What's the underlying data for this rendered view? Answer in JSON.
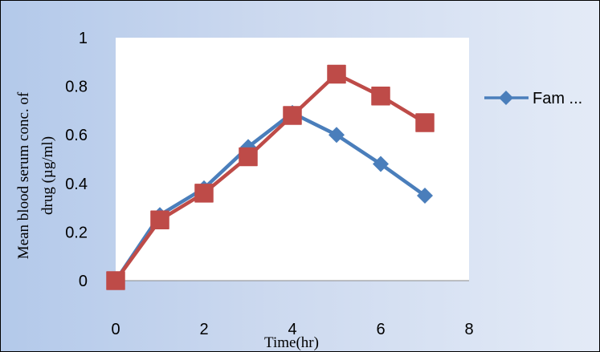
{
  "chart_data": {
    "type": "line",
    "title": "",
    "xlabel": "Time(hr)",
    "ylabel": "Mean blood serum conc. of drug (µg/ml)",
    "xlim": [
      0,
      8
    ],
    "ylim": [
      0,
      1
    ],
    "x_ticks": [
      "0",
      "2",
      "4",
      "6",
      "8"
    ],
    "y_ticks": [
      "0",
      "0.2",
      "0.4",
      "0.6",
      "0.8",
      "1"
    ],
    "grid": false,
    "legend_position": "right",
    "series": [
      {
        "name": "Fam ...",
        "color": "#4a7ebb",
        "marker": "diamond",
        "x": [
          0,
          1,
          2,
          3,
          4,
          5,
          6,
          7
        ],
        "y": [
          0,
          0.27,
          0.38,
          0.55,
          0.69,
          0.6,
          0.48,
          0.35
        ]
      },
      {
        "color": "#be4b48",
        "marker": "square",
        "x": [
          0,
          1,
          2,
          3,
          4,
          5,
          6,
          7
        ],
        "y": [
          0,
          0.25,
          0.36,
          0.51,
          0.68,
          0.85,
          0.76,
          0.65
        ]
      }
    ]
  }
}
